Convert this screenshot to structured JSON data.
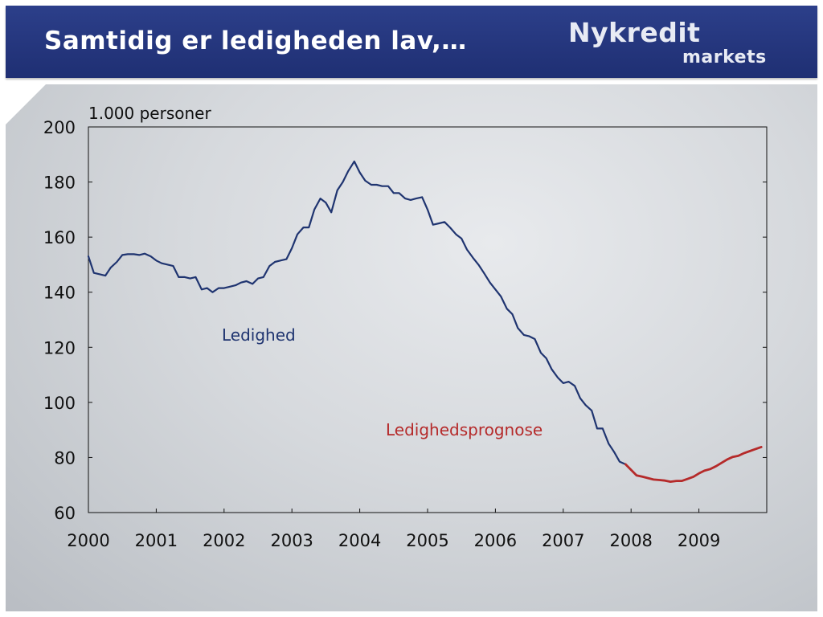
{
  "header": {
    "title": "Samtidig er ledigheden lav,…",
    "logo_main": "Nykredit",
    "logo_sub": "markets"
  },
  "colors": {
    "header_bg": "#1f2f73",
    "historical_line": "#1f3470",
    "forecast_line": "#b52a2a"
  },
  "chart_data": {
    "type": "line",
    "unit_label": "1.000 personer",
    "ylim": [
      60,
      200
    ],
    "yticks": [
      200,
      180,
      160,
      140,
      120,
      100,
      80,
      60
    ],
    "xlim": [
      2000,
      2010
    ],
    "xticks": [
      2000,
      2001,
      2002,
      2003,
      2004,
      2005,
      2006,
      2007,
      2008,
      2009
    ],
    "grid": false,
    "series": [
      {
        "name": "Ledighed",
        "color": "#1f3470",
        "x": [
          2000.0,
          2000.08,
          2000.17,
          2000.25,
          2000.33,
          2000.42,
          2000.5,
          2000.58,
          2000.67,
          2000.75,
          2000.83,
          2000.92,
          2001.0,
          2001.08,
          2001.17,
          2001.25,
          2001.33,
          2001.42,
          2001.5,
          2001.58,
          2001.67,
          2001.75,
          2001.83,
          2001.92,
          2002.0,
          2002.08,
          2002.17,
          2002.25,
          2002.33,
          2002.42,
          2002.5,
          2002.58,
          2002.67,
          2002.75,
          2002.83,
          2002.92,
          2003.0,
          2003.08,
          2003.17,
          2003.25,
          2003.33,
          2003.42,
          2003.5,
          2003.58,
          2003.67,
          2003.75,
          2003.83,
          2003.92,
          2004.0,
          2004.08,
          2004.17,
          2004.25,
          2004.33,
          2004.42,
          2004.5,
          2004.58,
          2004.67,
          2004.75,
          2004.83,
          2004.92,
          2005.0,
          2005.08,
          2005.17,
          2005.25,
          2005.33,
          2005.42,
          2005.5,
          2005.58,
          2005.67,
          2005.75,
          2005.83,
          2005.92,
          2006.0,
          2006.08,
          2006.17,
          2006.25,
          2006.33,
          2006.42,
          2006.5,
          2006.58,
          2006.67,
          2006.75,
          2006.83,
          2006.92,
          2007.0,
          2007.08,
          2007.17,
          2007.25,
          2007.33,
          2007.42,
          2007.5,
          2007.58,
          2007.67,
          2007.75,
          2007.83,
          2007.92
        ],
        "y": [
          153,
          147,
          146.5,
          146,
          149,
          151,
          153.5,
          153.8,
          153.8,
          153.5,
          154,
          153,
          151.5,
          150.5,
          150,
          149.5,
          145.5,
          145.5,
          145,
          145.5,
          141,
          141.5,
          140,
          141.5,
          141.5,
          142,
          142.5,
          143.5,
          144,
          143,
          145,
          145.5,
          149.5,
          151,
          151.5,
          152,
          156,
          161,
          163.5,
          163.5,
          170,
          174,
          172.5,
          169,
          177,
          180,
          184,
          187.5,
          183.5,
          180.5,
          179,
          179,
          178.5,
          178.5,
          176,
          176,
          174,
          173.5,
          174,
          174.5,
          170,
          164.5,
          165,
          165.5,
          163.5,
          161,
          159.5,
          155.5,
          152.5,
          150,
          147,
          143.5,
          141,
          138.5,
          134,
          132,
          127,
          124.5,
          124,
          123,
          118,
          116,
          112,
          109,
          107,
          107.5,
          106,
          101.5,
          99,
          97,
          90.5,
          90.5,
          85,
          82,
          78.5,
          77.5
        ]
      },
      {
        "name": "Ledighedsprognose",
        "color": "#b52a2a",
        "x": [
          2007.92,
          2008.0,
          2008.08,
          2008.17,
          2008.25,
          2008.33,
          2008.42,
          2008.5,
          2008.58,
          2008.67,
          2008.75,
          2008.83,
          2008.92,
          2009.0,
          2009.08,
          2009.17,
          2009.25,
          2009.33,
          2009.42,
          2009.5,
          2009.58,
          2009.67,
          2009.75,
          2009.83,
          2009.92
        ],
        "y": [
          77.5,
          75.5,
          73.5,
          73,
          72.5,
          72,
          71.8,
          71.6,
          71.2,
          71.5,
          71.5,
          72.2,
          73,
          74.2,
          75.2,
          75.8,
          76.8,
          78,
          79.3,
          80.2,
          80.6,
          81.6,
          82.3,
          83,
          83.8
        ]
      }
    ],
    "annotations": [
      {
        "text": "Ledighed",
        "color": "#1f3470"
      },
      {
        "text": "Ledighedsprognose",
        "color": "#b52a2a"
      }
    ]
  }
}
